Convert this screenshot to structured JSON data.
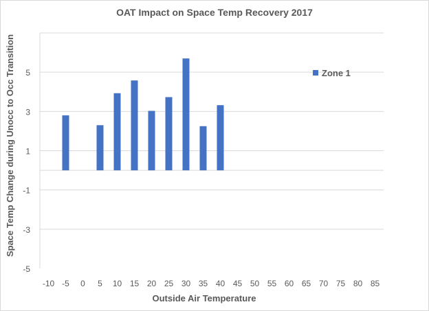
{
  "chart_data": {
    "type": "bar",
    "title": "OAT Impact on Space Temp Recovery 2017",
    "xlabel": "Outside Air Temperature",
    "ylabel": "Space Temp Change during Unocc to Occ Transition",
    "categories": [
      "-10",
      "-5",
      "0",
      "5",
      "10",
      "15",
      "20",
      "25",
      "30",
      "35",
      "40",
      "45",
      "50",
      "55",
      "60",
      "65",
      "70",
      "75",
      "80",
      "85"
    ],
    "series": [
      {
        "name": "Zone 1",
        "color": "#4472c4",
        "values": [
          null,
          2.8,
          null,
          2.3,
          3.93,
          4.58,
          3.03,
          3.73,
          5.7,
          2.25,
          3.32,
          null,
          null,
          null,
          null,
          null,
          null,
          null,
          null,
          null
        ]
      }
    ],
    "yticks": [
      -5,
      -3,
      -1,
      1,
      3,
      5
    ],
    "ylim": [
      -5,
      7
    ],
    "grid": true,
    "legend": "right"
  }
}
